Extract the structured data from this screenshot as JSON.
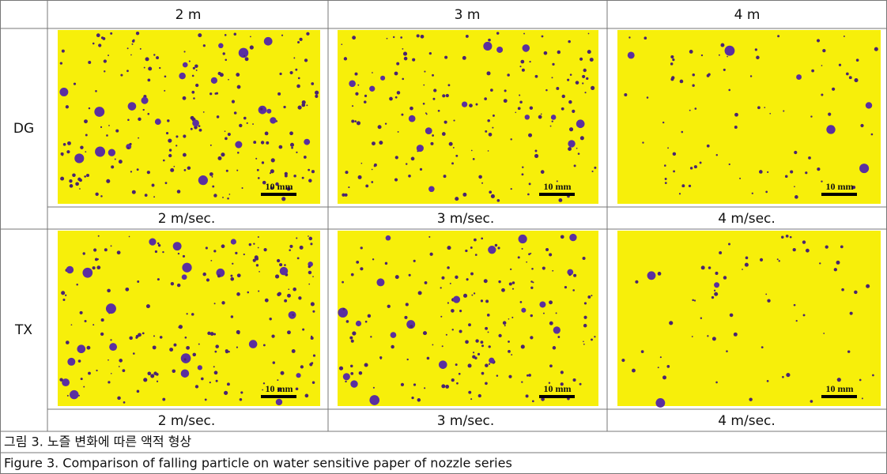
{
  "table": {
    "columns": [
      "2 m",
      "3 m",
      "4 m"
    ],
    "rows": [
      {
        "label": "DG",
        "images": [
          {
            "scale": "10 mm"
          },
          {
            "scale": "10 mm"
          },
          {
            "scale": "10 mm"
          }
        ],
        "speeds": [
          "2 m/sec.",
          "3 m/sec.",
          "4 m/sec."
        ]
      },
      {
        "label": "TX",
        "images": [
          {
            "scale": "10 mm"
          },
          {
            "scale": "10 mm"
          },
          {
            "scale": "10 mm"
          }
        ],
        "speeds": [
          "2 m/sec.",
          "3 m/sec.",
          "4 m/sec."
        ]
      }
    ]
  },
  "caption": {
    "korean": "그림 3. 노즐 변화에 따른 액적 형상",
    "english": "Figure 3. Comparison of falling particle on water sensitive paper of nozzle series"
  }
}
